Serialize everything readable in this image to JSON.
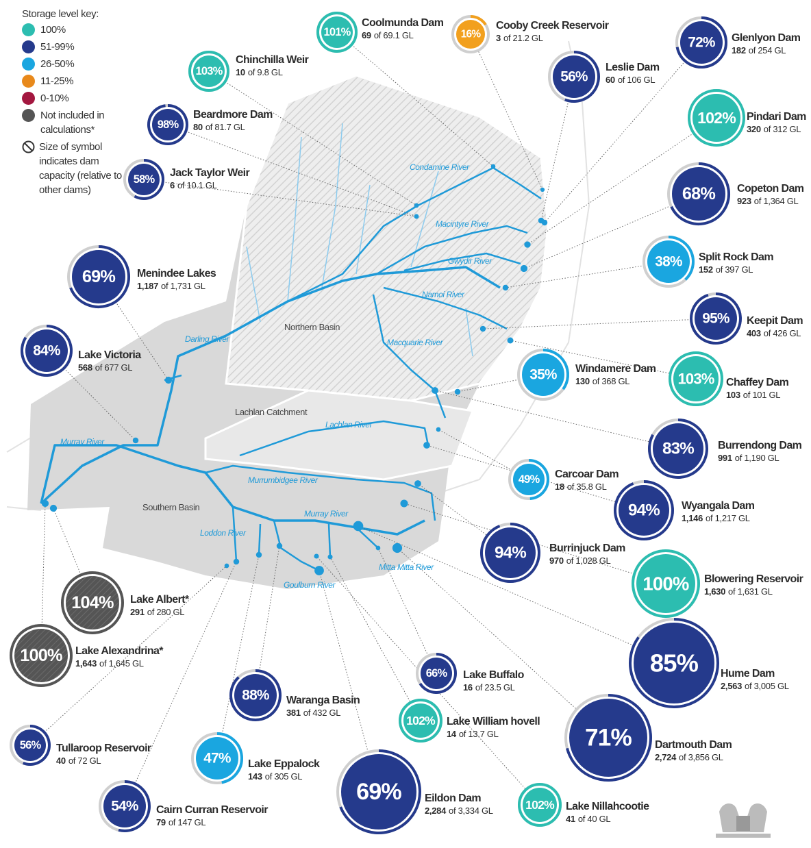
{
  "legend": {
    "title": "Storage level key:",
    "items": [
      {
        "label": "100%",
        "color": "#2cbdb0"
      },
      {
        "label": "51-99%",
        "color": "#253a8c"
      },
      {
        "label": "26-50%",
        "color": "#1aa6e0"
      },
      {
        "label": "11-25%",
        "color": "#e8891b"
      },
      {
        "label": "0-10%",
        "color": "#a3173f"
      },
      {
        "label": "Not included in calculations*",
        "color": "#555555"
      }
    ],
    "size_note": "Size of symbol indicates dam capacity (relative to other dams)"
  },
  "regions": [
    "Northern Basin",
    "Lachlan Catchment",
    "Southern Basin"
  ],
  "rivers": [
    "Condamine River",
    "Macintyre River",
    "Gwydir River",
    "Namoi River",
    "Macquarie River",
    "Darling River",
    "Murray River",
    "Lachlan River",
    "Murrumbidgee River",
    "Murray River",
    "Loddon River",
    "Goulburn River",
    "Mitta Mitta River"
  ],
  "dams": [
    {
      "name": "Coolmunda Dam",
      "value": 101,
      "label": "101%",
      "stored": "69",
      "capacity": "of 69.1 GL",
      "color": "#2cbdb0"
    },
    {
      "name": "Cooby Creek Reservoir",
      "value": 16,
      "label": "16%",
      "stored": "3",
      "capacity": "of 21.2 GL",
      "color": "#f2a01e"
    },
    {
      "name": "Glenlyon Dam",
      "value": 72,
      "label": "72%",
      "stored": "182",
      "capacity": "of 254 GL",
      "color": "#253a8c"
    },
    {
      "name": "Chinchilla Weir",
      "value": 103,
      "label": "103%",
      "stored": "10",
      "capacity": "of 9.8 GL",
      "color": "#2cbdb0"
    },
    {
      "name": "Leslie Dam",
      "value": 56,
      "label": "56%",
      "stored": "60",
      "capacity": "of 106 GL",
      "color": "#253a8c"
    },
    {
      "name": "Pindari Dam",
      "value": 102,
      "label": "102%",
      "stored": "320",
      "capacity": "of 312 GL",
      "color": "#2cbdb0"
    },
    {
      "name": "Beardmore Dam",
      "value": 98,
      "label": "98%",
      "stored": "80",
      "capacity": "of 81.7 GL",
      "color": "#253a8c"
    },
    {
      "name": "Jack Taylor Weir",
      "value": 58,
      "label": "58%",
      "stored": "6",
      "capacity": "of 10.1 GL",
      "color": "#253a8c"
    },
    {
      "name": "Copeton Dam",
      "value": 68,
      "label": "68%",
      "stored": "923",
      "capacity": "of 1,364 GL",
      "color": "#253a8c"
    },
    {
      "name": "Menindee Lakes",
      "value": 69,
      "label": "69%",
      "stored": "1,187",
      "capacity": "of 1,731 GL",
      "color": "#253a8c"
    },
    {
      "name": "Split Rock Dam",
      "value": 38,
      "label": "38%",
      "stored": "152",
      "capacity": "of 397 GL",
      "color": "#1aa6e0"
    },
    {
      "name": "Keepit Dam",
      "value": 95,
      "label": "95%",
      "stored": "403",
      "capacity": "of 426 GL",
      "color": "#253a8c"
    },
    {
      "name": "Lake Victoria",
      "value": 84,
      "label": "84%",
      "stored": "568",
      "capacity": "of 677 GL",
      "color": "#253a8c"
    },
    {
      "name": "Windamere Dam",
      "value": 35,
      "label": "35%",
      "stored": "130",
      "capacity": "of 368 GL",
      "color": "#1aa6e0"
    },
    {
      "name": "Chaffey Dam",
      "value": 103,
      "label": "103%",
      "stored": "103",
      "capacity": "of 101 GL",
      "color": "#2cbdb0"
    },
    {
      "name": "Burrendong Dam",
      "value": 83,
      "label": "83%",
      "stored": "991",
      "capacity": "of 1,190 GL",
      "color": "#253a8c"
    },
    {
      "name": "Carcoar Dam",
      "value": 49,
      "label": "49%",
      "stored": "18",
      "capacity": "of 35.8 GL",
      "color": "#1aa6e0"
    },
    {
      "name": "Wyangala Dam",
      "value": 94,
      "label": "94%",
      "stored": "1,146",
      "capacity": "of 1,217 GL",
      "color": "#253a8c"
    },
    {
      "name": "Burrinjuck Dam",
      "value": 94,
      "label": "94%",
      "stored": "970",
      "capacity": "of 1,028 GL",
      "color": "#253a8c"
    },
    {
      "name": "Blowering Reservoir",
      "value": 100,
      "label": "100%",
      "stored": "1,630",
      "capacity": "of 1,631 GL",
      "color": "#2cbdb0"
    },
    {
      "name": "Lake Albert*",
      "value": 104,
      "label": "104%",
      "stored": "291",
      "capacity": "of 280 GL",
      "color": "#555555"
    },
    {
      "name": "Lake Alexandrina*",
      "value": 100,
      "label": "100%",
      "stored": "1,643",
      "capacity": "of 1,645 GL",
      "color": "#555555"
    },
    {
      "name": "Hume Dam",
      "value": 85,
      "label": "85%",
      "stored": "2,563",
      "capacity": "of 3,005 GL",
      "color": "#253a8c"
    },
    {
      "name": "Lake Buffalo",
      "value": 66,
      "label": "66%",
      "stored": "16",
      "capacity": "of 23.5 GL",
      "color": "#253a8c"
    },
    {
      "name": "Waranga Basin",
      "value": 88,
      "label": "88%",
      "stored": "381",
      "capacity": "of 432 GL",
      "color": "#253a8c"
    },
    {
      "name": "Lake William hovell",
      "value": 102,
      "label": "102%",
      "stored": "14",
      "capacity": "of 13.7 GL",
      "color": "#2cbdb0"
    },
    {
      "name": "Tullaroop Reservoir",
      "value": 56,
      "label": "56%",
      "stored": "40",
      "capacity": "of 72 GL",
      "color": "#253a8c"
    },
    {
      "name": "Dartmouth Dam",
      "value": 71,
      "label": "71%",
      "stored": "2,724",
      "capacity": "of 3,856 GL",
      "color": "#253a8c"
    },
    {
      "name": "Lake Eppalock",
      "value": 47,
      "label": "47%",
      "stored": "143",
      "capacity": "of 305 GL",
      "color": "#1aa6e0"
    },
    {
      "name": "Eildon Dam",
      "value": 69,
      "label": "69%",
      "stored": "2,284",
      "capacity": "of 3,334 GL",
      "color": "#253a8c"
    },
    {
      "name": "Lake Nillahcootie",
      "value": 102,
      "label": "102%",
      "stored": "41",
      "capacity": "of 40 GL",
      "color": "#2cbdb0"
    },
    {
      "name": "Cairn Curran Reservoir",
      "value": 54,
      "label": "54%",
      "stored": "79",
      "capacity": "of 147 GL",
      "color": "#253a8c"
    }
  ]
}
